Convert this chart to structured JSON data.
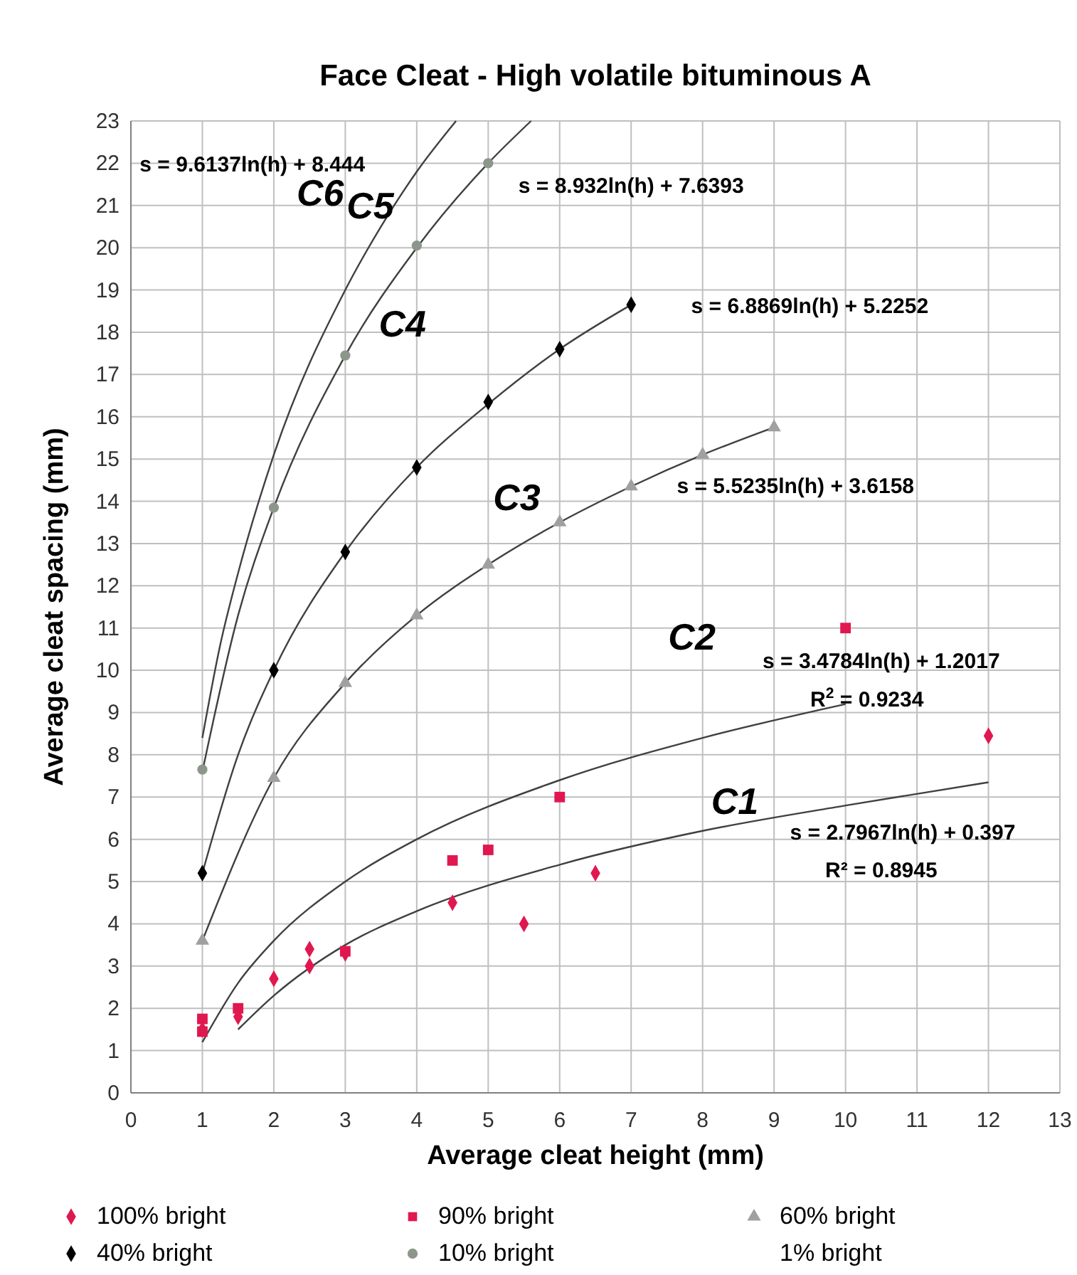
{
  "chart_data": {
    "type": "scatter",
    "title": "Face Cleat  - High volatile bituminous A",
    "xlabel": "Average cleat height (mm)",
    "ylabel": "Average cleat spacing (mm)",
    "xlim": [
      0,
      13
    ],
    "xticks": [
      0,
      1,
      2,
      3,
      4,
      5,
      6,
      7,
      8,
      9,
      10,
      11,
      12,
      13
    ],
    "ylim": [
      0,
      23
    ],
    "yticks": [
      0,
      1,
      2,
      3,
      4,
      5,
      6,
      7,
      8,
      9,
      10,
      11,
      12,
      13,
      14,
      15,
      16,
      17,
      18,
      19,
      20,
      21,
      22,
      23
    ],
    "grid": true,
    "legend": "bottom",
    "series": [
      {
        "name": "100% bright",
        "marker": "diamond",
        "color": "#e0184f",
        "x": [
          1,
          1.5,
          2,
          2.5,
          2.5,
          3,
          4.5,
          5.5,
          6.5,
          12
        ],
        "values": [
          1.5,
          1.8,
          2.7,
          3.4,
          3.0,
          3.3,
          4.5,
          4.0,
          5.2,
          8.45
        ]
      },
      {
        "name": "90% bright",
        "marker": "square",
        "color": "#e0184f",
        "x": [
          1,
          1,
          1.5,
          3,
          4.5,
          5,
          6,
          10
        ],
        "values": [
          1.75,
          1.45,
          2.0,
          3.35,
          5.5,
          5.75,
          7.0,
          11.0
        ]
      },
      {
        "name": "60% bright",
        "marker": "triangle",
        "color": "#a0a0a0",
        "x": [
          1,
          2,
          3,
          4,
          5,
          6,
          7,
          8,
          9
        ],
        "values": [
          3.6,
          7.45,
          9.7,
          11.3,
          12.5,
          13.5,
          14.35,
          15.1,
          15.75
        ]
      },
      {
        "name": "40% bright",
        "marker": "diamond",
        "color": "#000000",
        "x": [
          1,
          2,
          3,
          4,
          5,
          6,
          7
        ],
        "values": [
          5.2,
          10.0,
          12.8,
          14.8,
          16.35,
          17.6,
          18.65
        ]
      },
      {
        "name": "10% bright",
        "marker": "circle",
        "color": "#8c968a",
        "x": [
          1,
          2,
          3,
          4,
          5
        ],
        "values": [
          7.65,
          13.85,
          17.45,
          20.05,
          22.0
        ]
      },
      {
        "name": "1% bright",
        "marker": "none"
      },
      {
        "type": "line",
        "color": "#404040",
        "x": [
          1.5,
          2,
          3,
          4,
          6,
          8,
          10,
          12
        ],
        "values": [
          1.5,
          2.3,
          3.5,
          4.3,
          5.4,
          6.2,
          6.8,
          7.35
        ]
      },
      {
        "type": "line",
        "color": "#404040",
        "x": [
          1,
          1.5,
          2,
          3,
          4,
          6,
          8,
          10
        ],
        "values": [
          1.2,
          2.6,
          3.6,
          5.0,
          6.0,
          7.4,
          8.4,
          9.2
        ]
      },
      {
        "type": "line",
        "color": "#404040",
        "x": [
          1,
          2,
          3,
          4,
          5,
          6,
          7,
          8,
          9
        ],
        "values": [
          3.6,
          7.45,
          9.7,
          11.3,
          12.5,
          13.5,
          14.35,
          15.1,
          15.75
        ]
      },
      {
        "type": "line",
        "color": "#404040",
        "x": [
          1,
          1.5,
          2,
          3,
          4,
          5,
          6,
          7
        ],
        "values": [
          5.2,
          8.0,
          10.0,
          12.8,
          14.8,
          16.3,
          17.6,
          18.65
        ]
      },
      {
        "type": "line",
        "color": "#404040",
        "x": [
          1,
          1.5,
          2,
          3,
          4,
          5,
          5.6
        ],
        "values": [
          7.6,
          11.3,
          13.85,
          17.45,
          20.0,
          22.0,
          23.0
        ]
      },
      {
        "type": "line",
        "color": "#404040",
        "x": [
          1,
          1.25,
          1.5,
          2,
          3,
          3.5,
          4,
          4.55
        ],
        "values": [
          8.4,
          10.6,
          12.3,
          15.1,
          19.0,
          20.5,
          21.8,
          23.0
        ]
      }
    ],
    "annotations": [
      "C1",
      "C2",
      "C3",
      "C4",
      "C5",
      "C6",
      "s = 9.6137ln(h) + 8.444",
      "s = 8.932ln(h) + 7.6393",
      "s = 6.8869ln(h) + 5.2252",
      "s = 5.5235ln(h) + 3.6158",
      "s = 3.4784ln(h) + 1.2017",
      "R$^{2}$ = 0.9234",
      "s = 2.7967ln(h) + 0.397",
      "R² = 0.8945"
    ]
  }
}
